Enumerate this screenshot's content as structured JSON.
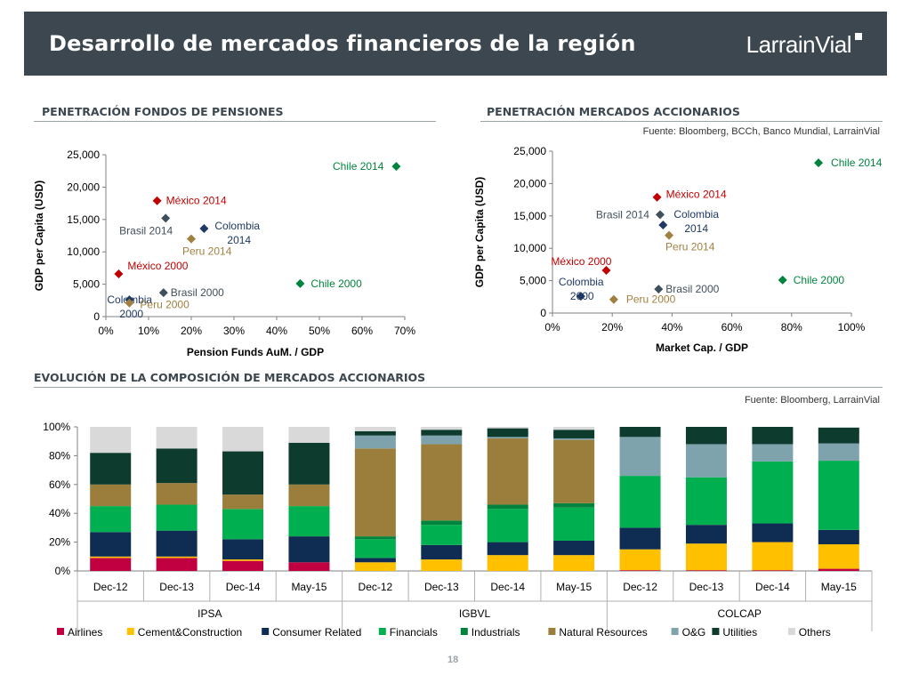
{
  "header": {
    "title": "Desarrollo de mercados financieros de la región",
    "logo": "LarrainVial"
  },
  "sections": {
    "pensions_title": "PENETRACIÓN FONDOS DE PENSIONES",
    "equity_title": "PENETRACIÓN MERCADOS ACCIONARIOS",
    "equity_source": "Fuente: Bloomberg, BCCh, Banco Mundial, LarrainVial",
    "evolution_title": "EVOLUCIÓN DE LA COMPOSICIÓN DE MERCADOS ACCIONARIOS",
    "evolution_source": "Fuente: Bloomberg, LarrainVial"
  },
  "page_number": "18",
  "colors": {
    "mexico": "#c00000",
    "colombia": "#1f3864",
    "brasil": "#404f5c",
    "peru": "#a08040",
    "chile": "#00843d",
    "axis": "#404040"
  },
  "chart_data": [
    {
      "type": "scatter",
      "title": "PENETRACIÓN FONDOS DE PENSIONES",
      "xlabel": "Pension Funds AuM. / GDP",
      "ylabel": "GDP per Capita (USD)",
      "xlim": [
        0,
        0.7
      ],
      "ylim": [
        0,
        25000
      ],
      "x_ticks": [
        "0%",
        "10%",
        "20%",
        "30%",
        "40%",
        "50%",
        "60%",
        "70%"
      ],
      "y_ticks": [
        "0",
        "5,000",
        "10,000",
        "15,000",
        "20,000",
        "25,000"
      ],
      "points": [
        {
          "label": "Chile 2014",
          "x": 0.68,
          "y": 23200,
          "group": "chile"
        },
        {
          "label": "México 2014",
          "x": 0.12,
          "y": 17900,
          "group": "mexico"
        },
        {
          "label": "Brasil 2014",
          "x": 0.14,
          "y": 15200,
          "group": "brasil"
        },
        {
          "label": "Colombia 2014",
          "x": 0.23,
          "y": 13600,
          "group": "colombia"
        },
        {
          "label": "Peru 2014",
          "x": 0.2,
          "y": 12000,
          "group": "peru"
        },
        {
          "label": "México 2000",
          "x": 0.03,
          "y": 6600,
          "group": "mexico"
        },
        {
          "label": "Chile 2000",
          "x": 0.455,
          "y": 5100,
          "group": "chile"
        },
        {
          "label": "Colombia 2000",
          "x": 0.055,
          "y": 2600,
          "group": "colombia"
        },
        {
          "label": "Brasil 2000",
          "x": 0.135,
          "y": 3700,
          "group": "brasil"
        },
        {
          "label": "Peru 2000",
          "x": 0.055,
          "y": 2100,
          "group": "peru"
        }
      ]
    },
    {
      "type": "scatter",
      "title": "PENETRACIÓN MERCADOS ACCIONARIOS",
      "xlabel": "Market Cap. / GDP",
      "ylabel": "GDP per Capita (USD)",
      "xlim": [
        0,
        1.0
      ],
      "ylim": [
        0,
        25000
      ],
      "x_ticks": [
        "0%",
        "20%",
        "40%",
        "60%",
        "80%",
        "100%"
      ],
      "y_ticks": [
        "0",
        "5,000",
        "10,000",
        "15,000",
        "20,000",
        "25,000"
      ],
      "points": [
        {
          "label": "Chile 2014",
          "x": 0.89,
          "y": 23200,
          "group": "chile"
        },
        {
          "label": "México 2014",
          "x": 0.35,
          "y": 17900,
          "group": "mexico"
        },
        {
          "label": "Brasil 2014",
          "x": 0.36,
          "y": 15200,
          "group": "brasil"
        },
        {
          "label": "Colombia 2014",
          "x": 0.37,
          "y": 13600,
          "group": "colombia"
        },
        {
          "label": "Peru 2014",
          "x": 0.39,
          "y": 12000,
          "group": "peru"
        },
        {
          "label": "México 2000",
          "x": 0.18,
          "y": 6600,
          "group": "mexico"
        },
        {
          "label": "Chile 2000",
          "x": 0.77,
          "y": 5100,
          "group": "chile"
        },
        {
          "label": "Colombia 2000",
          "x": 0.095,
          "y": 2600,
          "group": "colombia"
        },
        {
          "label": "Brasil 2000",
          "x": 0.355,
          "y": 3700,
          "group": "brasil"
        },
        {
          "label": "Peru 2000",
          "x": 0.205,
          "y": 2100,
          "group": "peru"
        }
      ]
    },
    {
      "type": "bar",
      "stacked": true,
      "title": "EVOLUCIÓN DE LA COMPOSICIÓN DE MERCADOS ACCIONARIOS",
      "ylim": [
        0,
        1
      ],
      "y_ticks": [
        "0%",
        "20%",
        "40%",
        "60%",
        "80%",
        "100%"
      ],
      "categories": [
        "Dec-12",
        "Dec-13",
        "Dec-14",
        "May-15",
        "Dec-12",
        "Dec-13",
        "Dec-14",
        "May-15",
        "Dec-12",
        "Dec-13",
        "Dec-14",
        "May-15"
      ],
      "groups": [
        {
          "name": "IPSA",
          "count": 4
        },
        {
          "name": "IGBVL",
          "count": 4
        },
        {
          "name": "COLCAP",
          "count": 4
        }
      ],
      "series": [
        {
          "name": "Airlines",
          "color": "#c00040",
          "values": [
            0.09,
            0.09,
            0.07,
            0.06,
            0,
            0,
            0,
            0,
            0.005,
            0.005,
            0.005,
            0.015
          ]
        },
        {
          "name": "Cement&Construction",
          "color": "#ffc000",
          "values": [
            0.01,
            0.01,
            0.01,
            0,
            0.06,
            0.08,
            0.11,
            0.11,
            0.145,
            0.185,
            0.195,
            0.17
          ]
        },
        {
          "name": "Consumer Related",
          "color": "#0f2d52",
          "values": [
            0.17,
            0.18,
            0.14,
            0.18,
            0.03,
            0.1,
            0.09,
            0.1,
            0.15,
            0.13,
            0.13,
            0.1
          ]
        },
        {
          "name": "Financials",
          "color": "#00b050",
          "values": [
            0.18,
            0.18,
            0.21,
            0.21,
            0.13,
            0.14,
            0.23,
            0.23,
            0.36,
            0.33,
            0.43,
            0.48
          ]
        },
        {
          "name": "Industrials",
          "color": "#00843d",
          "values": [
            0,
            0,
            0,
            0,
            0.02,
            0.03,
            0.03,
            0.03,
            0,
            0,
            0,
            0
          ]
        },
        {
          "name": "Natural Resources",
          "color": "#9c7e3c",
          "values": [
            0.15,
            0.15,
            0.1,
            0.15,
            0.61,
            0.53,
            0.46,
            0.44,
            0,
            0,
            0,
            0
          ]
        },
        {
          "name": "O&G",
          "color": "#7fa3ad",
          "values": [
            0,
            0,
            0,
            0,
            0.09,
            0.06,
            0.01,
            0.01,
            0.27,
            0.23,
            0.12,
            0.12
          ]
        },
        {
          "name": "Utilities",
          "color": "#0d3b2e",
          "values": [
            0.22,
            0.24,
            0.3,
            0.29,
            0.03,
            0.04,
            0.06,
            0.06,
            0.07,
            0.12,
            0.12,
            0.11
          ]
        },
        {
          "name": "Others",
          "color": "#d9d9d9",
          "values": [
            0.18,
            0.15,
            0.17,
            0.11,
            0.03,
            0.02,
            0.01,
            0.02,
            0,
            0,
            0,
            0
          ]
        }
      ]
    }
  ]
}
